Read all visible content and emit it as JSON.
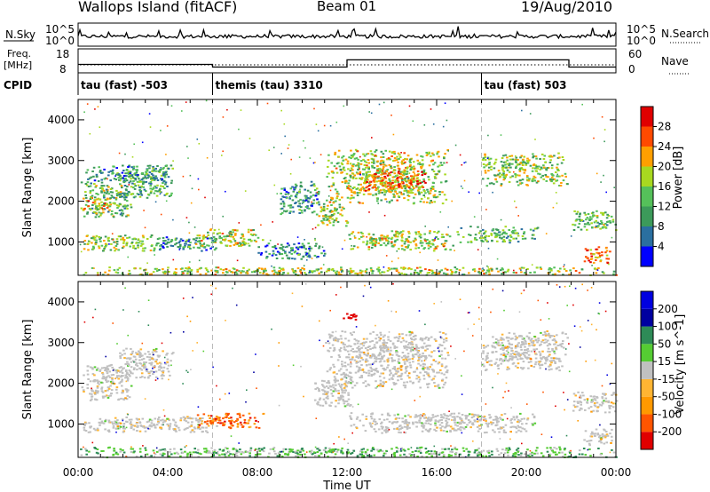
{
  "header": {
    "station": "Wallops Island (fitACF)",
    "beam": "Beam 01",
    "date": "19/Aug/2010"
  },
  "top_panels": {
    "nsky_label": "N.Sky",
    "nsky_ticks": [
      "10^5",
      "10^0"
    ],
    "nsearch_label": "N.Search",
    "nsearch_ticks": [
      "10^5",
      "10^0"
    ],
    "freq_label": "Freq.",
    "freq_unit": "[MHz]",
    "freq_ticks": [
      "18",
      "8"
    ],
    "nave_label": "Nave",
    "nave_ticks": [
      "60",
      "0"
    ],
    "cpid_label": "CPID",
    "cpid_segments": [
      {
        "label": "tau (fast) -503",
        "start_hr": 0,
        "end_hr": 6
      },
      {
        "label": "themis (tau) 3310",
        "start_hr": 6,
        "end_hr": 18
      },
      {
        "label": "tau (fast) 503",
        "start_hr": 18,
        "end_hr": 24
      }
    ],
    "freq_series": [
      {
        "x": 0,
        "y": 11.5
      },
      {
        "x": 6,
        "y": 11.5
      },
      {
        "x": 6,
        "y": 10.4
      },
      {
        "x": 12,
        "y": 10.4
      },
      {
        "x": 12,
        "y": 13.4
      },
      {
        "x": 21.9,
        "y": 13.4
      },
      {
        "x": 21.9,
        "y": 10.4
      },
      {
        "x": 24,
        "y": 10.4
      }
    ]
  },
  "colors": {
    "power": [
      "#0000ff",
      "#2a6fa0",
      "#3c9a5a",
      "#55c05a",
      "#a8d820",
      "#ff9f00",
      "#ff4a00",
      "#e00000"
    ],
    "velocity": [
      "#e00000",
      "#ff5500",
      "#ff9900",
      "#ffb533",
      "#c0c0c0",
      "#55cc33",
      "#2e8b57",
      "#0000a0",
      "#0000e0"
    ]
  },
  "chart_data": [
    {
      "type": "heatmap",
      "ylabel": "Slant Range [km]",
      "xlim": [
        0,
        24
      ],
      "ylim": [
        180,
        4500
      ],
      "yticks": [
        1000,
        2000,
        3000,
        4000
      ],
      "xtick_labels": [
        "00:00",
        "04:00",
        "08:00",
        "12:00",
        "16:00",
        "20:00",
        "00:00"
      ],
      "colorbar": {
        "label": "Power [dB]",
        "ticks": [
          "4",
          "8",
          "12",
          "16",
          "20",
          "24",
          "28"
        ],
        "range": [
          0,
          30
        ]
      },
      "blobs": [
        {
          "t0": 0.1,
          "t1": 2.4,
          "r0": 1600,
          "r1": 2500,
          "level": 0.45
        },
        {
          "t0": 0.2,
          "t1": 1.3,
          "r0": 1800,
          "r1": 2100,
          "level": 0.75
        },
        {
          "t0": 1.8,
          "t1": 4.2,
          "r0": 2100,
          "r1": 2900,
          "level": 0.35
        },
        {
          "t0": 0.3,
          "t1": 4.0,
          "r0": 2500,
          "r1": 2900,
          "level": 0.3
        },
        {
          "t0": 0.2,
          "t1": 3.5,
          "r0": 800,
          "r1": 1200,
          "level": 0.5
        },
        {
          "t0": 3.2,
          "t1": 6.3,
          "r0": 800,
          "r1": 1150,
          "level": 0.3
        },
        {
          "t0": 5.2,
          "t1": 8.2,
          "r0": 900,
          "r1": 1350,
          "level": 0.55
        },
        {
          "t0": 8.0,
          "t1": 11.0,
          "r0": 600,
          "r1": 1000,
          "level": 0.28
        },
        {
          "t0": 11.0,
          "t1": 16.5,
          "r0": 1950,
          "r1": 3300,
          "level": 0.55
        },
        {
          "t0": 12.5,
          "t1": 15.5,
          "r0": 2200,
          "r1": 2800,
          "level": 0.75
        },
        {
          "t0": 9.0,
          "t1": 10.8,
          "r0": 1700,
          "r1": 2500,
          "level": 0.3
        },
        {
          "t0": 10.6,
          "t1": 12.0,
          "r0": 1400,
          "r1": 2000,
          "level": 0.5
        },
        {
          "t0": 12.0,
          "t1": 17.0,
          "r0": 800,
          "r1": 1300,
          "level": 0.55
        },
        {
          "t0": 17.0,
          "t1": 20.5,
          "r0": 1000,
          "r1": 1400,
          "level": 0.4
        },
        {
          "t0": 18.0,
          "t1": 21.8,
          "r0": 2400,
          "r1": 3200,
          "level": 0.5
        },
        {
          "t0": 22.0,
          "t1": 24.0,
          "r0": 1300,
          "r1": 1800,
          "level": 0.45
        },
        {
          "t0": 22.3,
          "t1": 23.7,
          "r0": 500,
          "r1": 900,
          "level": 0.75
        },
        {
          "t0": 0.0,
          "t1": 24.0,
          "r0": 200,
          "r1": 400,
          "level": 0.55
        }
      ]
    },
    {
      "type": "heatmap",
      "ylabel": "Slant Range [km]",
      "xlabel": "Time UT",
      "xlim": [
        0,
        24
      ],
      "ylim": [
        180,
        4500
      ],
      "yticks": [
        1000,
        2000,
        3000,
        4000
      ],
      "xtick_labels": [
        "00:00",
        "04:00",
        "08:00",
        "12:00",
        "16:00",
        "20:00",
        "00:00"
      ],
      "colorbar": {
        "label": "Velocity [m s^-1]",
        "ticks": [
          "-200",
          "-100",
          "-50",
          "-15",
          "15",
          "50",
          "100",
          "200"
        ],
        "range": [
          -250,
          250
        ]
      },
      "blobs": [
        {
          "t0": 0.1,
          "t1": 2.4,
          "r0": 1600,
          "r1": 2500,
          "level": 0.45
        },
        {
          "t0": 1.8,
          "t1": 4.2,
          "r0": 2100,
          "r1": 2900,
          "level": 0.45
        },
        {
          "t0": 0.2,
          "t1": 6.3,
          "r0": 800,
          "r1": 1200,
          "level": 0.45
        },
        {
          "t0": 5.2,
          "t1": 8.3,
          "r0": 900,
          "r1": 1300,
          "level": 0.22
        },
        {
          "t0": 11.0,
          "t1": 16.5,
          "r0": 1900,
          "r1": 3300,
          "level": 0.45
        },
        {
          "t0": 10.5,
          "t1": 12.2,
          "r0": 1400,
          "r1": 2100,
          "level": 0.45
        },
        {
          "t0": 12.0,
          "t1": 20.5,
          "r0": 800,
          "r1": 1300,
          "level": 0.45
        },
        {
          "t0": 18.0,
          "t1": 21.8,
          "r0": 2300,
          "r1": 3300,
          "level": 0.45
        },
        {
          "t0": 22.0,
          "t1": 24.0,
          "r0": 1300,
          "r1": 1800,
          "level": 0.45
        },
        {
          "t0": 22.5,
          "t1": 23.8,
          "r0": 500,
          "r1": 900,
          "level": 0.45
        },
        {
          "t0": 0.0,
          "t1": 24.0,
          "r0": 200,
          "r1": 450,
          "level": 0.62
        },
        {
          "t0": 11.8,
          "t1": 12.6,
          "r0": 3550,
          "r1": 3750,
          "level": 0.03
        }
      ]
    }
  ]
}
